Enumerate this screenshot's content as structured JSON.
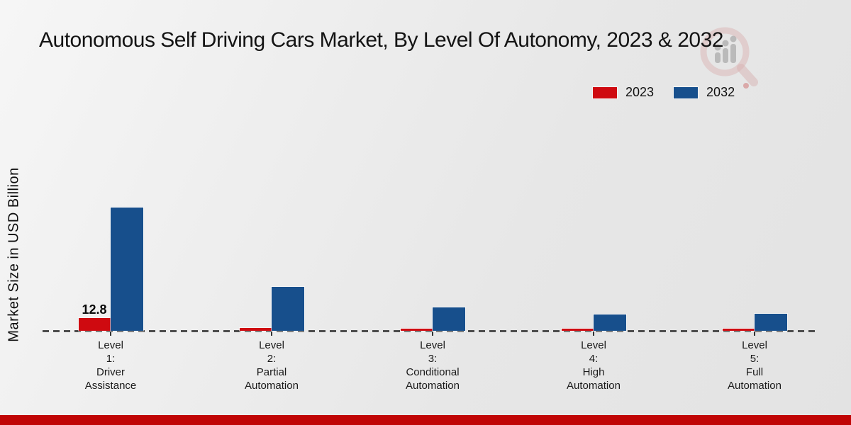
{
  "title": "Autonomous Self Driving Cars Market, By Level Of Autonomy, 2023 & 2032",
  "ylabel": "Market Size in USD Billion",
  "colors": {
    "series_2023": "#cf0a10",
    "series_2032": "#174f8c",
    "footer_stripe": "#c00505",
    "baseline": "#4d4d4d"
  },
  "footer": {
    "stripe_color": "#c00505"
  },
  "watermark_icon": "magnifier-bar-chart-logo-icon",
  "chart_data": {
    "type": "bar",
    "title": "Autonomous Self Driving Cars Market, By Level Of Autonomy, 2023 & 2032",
    "xlabel": "",
    "ylabel": "Market Size in USD Billion",
    "ylim": [
      0,
      130
    ],
    "grid": false,
    "legend_position": "top-right",
    "baseline_style": "dashed",
    "categories": [
      [
        "Level",
        "1:",
        "Driver",
        "Assistance"
      ],
      [
        "Level",
        "2:",
        "Partial",
        "Automation"
      ],
      [
        "Level",
        "3:",
        "Conditional",
        "Automation"
      ],
      [
        "Level",
        "4:",
        "High",
        "Automation"
      ],
      [
        "Level",
        "5:",
        "Full",
        "Automation"
      ]
    ],
    "series": [
      {
        "name": "2023",
        "color": "#cf0a10",
        "values": [
          12.8,
          3.0,
          1.8,
          1.8,
          1.8
        ],
        "value_labels": [
          "12.8",
          "",
          "",
          "",
          ""
        ]
      },
      {
        "name": "2032",
        "color": "#174f8c",
        "values": [
          121.7,
          43.5,
          23.1,
          16.1,
          16.8
        ],
        "value_labels": [
          "",
          "",
          "",
          "",
          ""
        ]
      }
    ]
  }
}
